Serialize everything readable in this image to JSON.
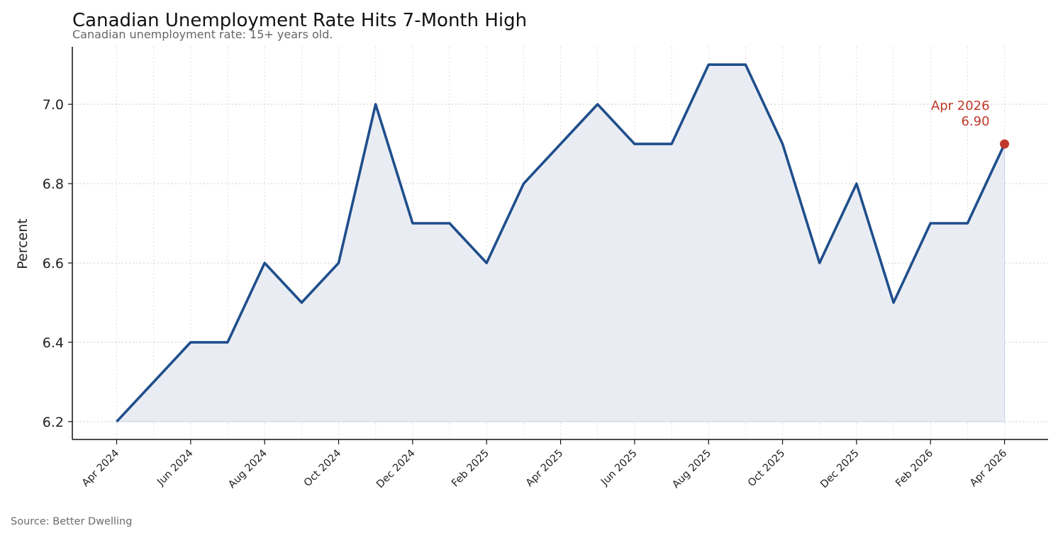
{
  "title": "Canadian Unemployment Rate Hits 7-Month High",
  "subtitle": "Canadian unemployment rate: 15+ years old.",
  "source": "Source: Better Dwelling",
  "colors": {
    "line": "#1f4e8c",
    "fill": "#e9edf3",
    "highlight": "#c0392b",
    "grid": "#cccccc",
    "axis": "#111111"
  },
  "chart_data": {
    "type": "area",
    "title": "Canadian Unemployment Rate Hits 7-Month High",
    "subtitle": "Canadian unemployment rate: 15+ years old.",
    "xlabel": "",
    "ylabel": "Percent",
    "x": [
      "2024-04",
      "2024-05",
      "2024-06",
      "2024-07",
      "2024-08",
      "2024-09",
      "2024-10",
      "2024-11",
      "2024-12",
      "2025-01",
      "2025-02",
      "2025-03",
      "2025-04",
      "2025-05",
      "2025-06",
      "2025-07",
      "2025-08",
      "2025-09",
      "2025-10",
      "2025-11",
      "2025-12",
      "2026-01",
      "2026-02",
      "2026-03",
      "2026-04"
    ],
    "series": [
      {
        "values": [
          6.2,
          6.3,
          6.4,
          6.4,
          6.6,
          6.5,
          6.6,
          7.0,
          6.7,
          6.7,
          6.6,
          6.8,
          6.9,
          7.0,
          6.9,
          6.9,
          7.1,
          7.1,
          6.9,
          6.6,
          6.8,
          6.5,
          6.7,
          6.7,
          6.9
        ]
      }
    ],
    "ylim": [
      6.155,
      7.145
    ],
    "yticks": [
      6.2,
      6.4,
      6.6,
      6.8,
      7.0
    ],
    "ytick_labels": [
      "6.2",
      "6.4",
      "6.6",
      "6.8",
      "7.0"
    ],
    "xticks": [
      "2024-04",
      "2024-06",
      "2024-08",
      "2024-10",
      "2024-12",
      "2025-02",
      "2025-04",
      "2025-06",
      "2025-08",
      "2025-10",
      "2025-12",
      "2026-02",
      "2026-04"
    ],
    "xtick_labels": [
      "Apr 2024",
      "Jun 2024",
      "Aug 2024",
      "Oct 2024",
      "Dec 2024",
      "Feb 2025",
      "Apr 2025",
      "Jun 2025",
      "Aug 2025",
      "Oct 2025",
      "Dec 2025",
      "Feb 2026",
      "Apr 2026"
    ],
    "grid": true,
    "annotation": {
      "x": "2026-04",
      "label_date": "Apr 2026",
      "label_value": "6.90"
    }
  }
}
